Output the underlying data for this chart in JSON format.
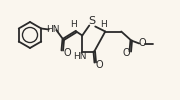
{
  "bg_color": "#faf6ee",
  "line_color": "#2a2a2a",
  "lw": 1.3,
  "figsize": [
    1.8,
    1.0
  ],
  "dpi": 100,
  "xlim": [
    0,
    180
  ],
  "ylim": [
    0,
    100
  ]
}
